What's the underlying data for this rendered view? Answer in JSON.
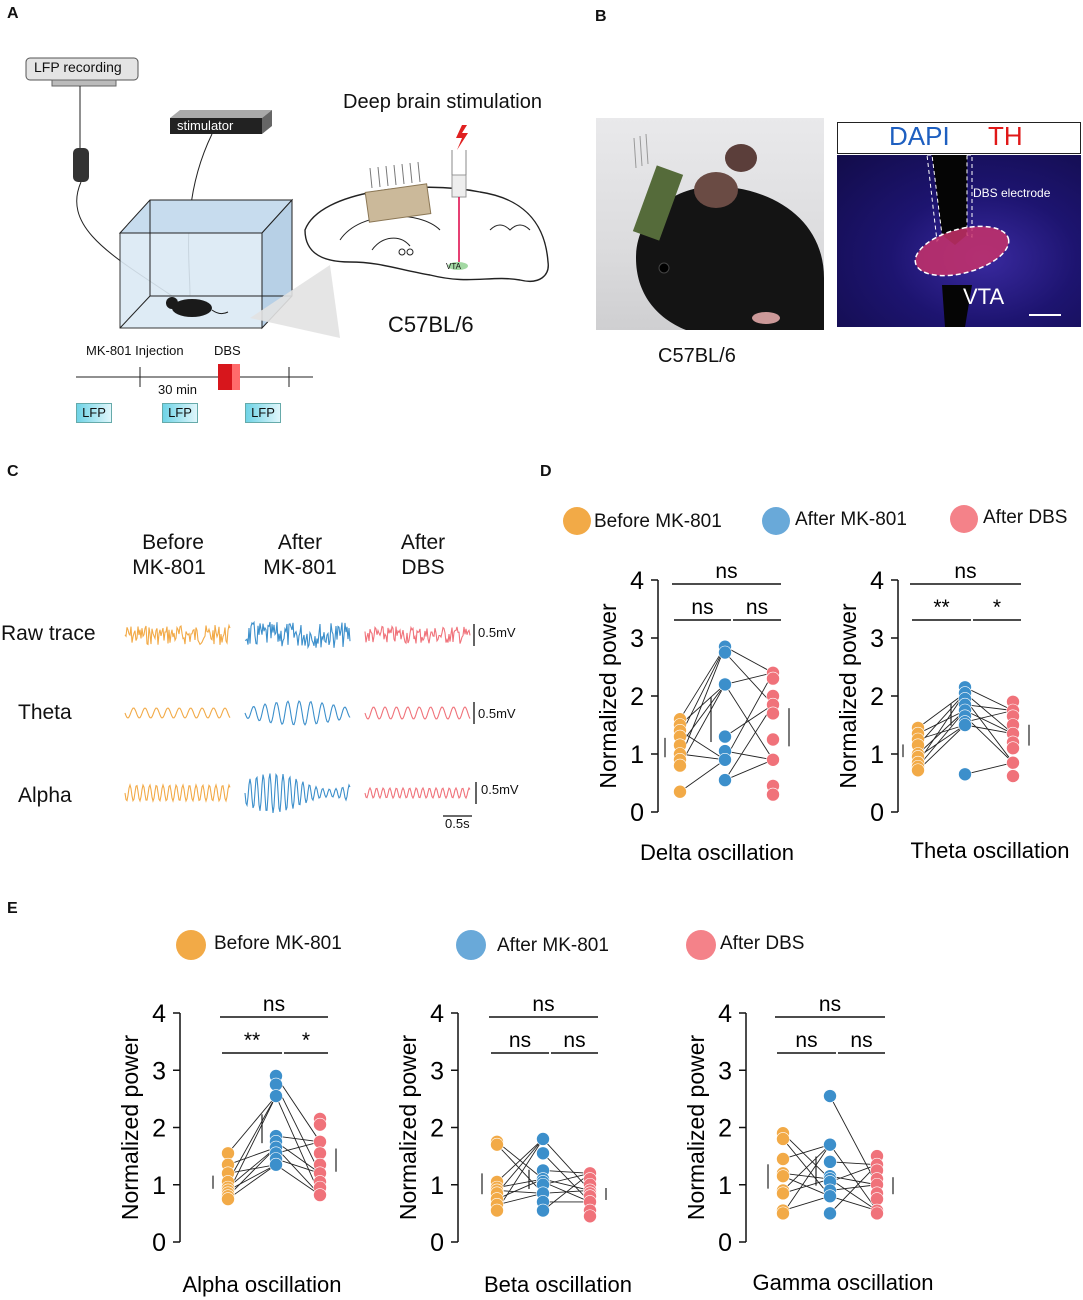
{
  "panels": {
    "A": "A",
    "B": "B",
    "C": "C",
    "D": "D",
    "E": "E"
  },
  "panelA": {
    "lfp_recording": "LFP recording",
    "stimulator": "stimulator",
    "dbs_title": "Deep brain stimulation",
    "strain": "C57BL/6",
    "vta_small": "VTA",
    "timeline_injection": "MK-801 Injection",
    "timeline_dbs": "DBS",
    "timeline_interval": "30 min",
    "lfp_boxes": [
      "LFP",
      "LFP",
      "LFP"
    ]
  },
  "panelB": {
    "strain": "C57BL/6",
    "dapi": "DAPI",
    "th": "TH",
    "dbs_electrode": "DBS electrode",
    "vta": "VTA"
  },
  "panelC": {
    "columns": [
      [
        "Before",
        "MK-801"
      ],
      [
        "After",
        "MK-801"
      ],
      [
        "After",
        "DBS"
      ]
    ],
    "rows": [
      "Raw trace",
      "Theta",
      "Alpha"
    ],
    "scale_mv": "0.5mV",
    "scale_time": "0.5s"
  },
  "legend": {
    "before": "Before MK-801",
    "after_mk": "After MK-801",
    "after_dbs": "After DBS"
  },
  "colors": {
    "before": "#f2aa47",
    "after_mk": "#3c8fcb",
    "after_dbs": "#f0727a"
  },
  "chart_data": [
    {
      "type": "scatter",
      "title": "Delta oscillation",
      "ylabel": "Normalized power",
      "ylim": [
        0,
        4
      ],
      "yticks": [
        0,
        1,
        2,
        3,
        4
      ],
      "groups": [
        "Before MK-801",
        "After MK-801",
        "After DBS"
      ],
      "values": [
        [
          1.6,
          1.5,
          1.4,
          1.3,
          1.15,
          1.0,
          0.9,
          0.8,
          0.35
        ],
        [
          2.85,
          2.75,
          2.2,
          2.2,
          1.3,
          1.05,
          0.9,
          0.55,
          0.55
        ],
        [
          2.4,
          2.3,
          2.0,
          1.85,
          1.7,
          1.25,
          0.9,
          0.45,
          0.3
        ]
      ],
      "significance": [
        {
          "pair": "1-3",
          "label": "ns"
        },
        {
          "pair": "1-2",
          "label": "ns"
        },
        {
          "pair": "2-3",
          "label": "ns"
        }
      ]
    },
    {
      "type": "scatter",
      "title": "Theta oscillation",
      "ylabel": "Normalized power",
      "ylim": [
        0,
        4
      ],
      "yticks": [
        0,
        1,
        2,
        3,
        4
      ],
      "groups": [
        "Before MK-801",
        "After MK-801",
        "After DBS"
      ],
      "values": [
        [
          1.45,
          1.35,
          1.25,
          1.15,
          1.0,
          0.95,
          0.85,
          0.78,
          0.72
        ],
        [
          2.15,
          2.05,
          1.95,
          1.85,
          1.75,
          1.65,
          1.55,
          1.5,
          0.65
        ],
        [
          1.9,
          1.75,
          1.65,
          1.5,
          1.35,
          1.2,
          1.1,
          0.85,
          0.62
        ]
      ],
      "significance": [
        {
          "pair": "1-3",
          "label": "ns"
        },
        {
          "pair": "1-2",
          "label": "**"
        },
        {
          "pair": "2-3",
          "label": "*"
        }
      ]
    },
    {
      "type": "scatter",
      "title": "Alpha oscillation",
      "ylabel": "Normalized power",
      "ylim": [
        0,
        4
      ],
      "yticks": [
        0,
        1,
        2,
        3,
        4
      ],
      "groups": [
        "Before MK-801",
        "After MK-801",
        "After DBS"
      ],
      "values": [
        [
          1.55,
          1.35,
          1.2,
          1.05,
          0.95,
          0.9,
          0.85,
          0.8,
          0.75
        ],
        [
          2.9,
          2.75,
          2.55,
          1.85,
          1.75,
          1.65,
          1.55,
          1.45,
          1.35
        ],
        [
          2.15,
          2.05,
          1.75,
          1.55,
          1.35,
          1.2,
          1.05,
          0.95,
          0.82
        ]
      ],
      "significance": [
        {
          "pair": "1-3",
          "label": "ns"
        },
        {
          "pair": "1-2",
          "label": "**"
        },
        {
          "pair": "2-3",
          "label": "*"
        }
      ]
    },
    {
      "type": "scatter",
      "title": "Beta oscillation",
      "ylabel": "Normalized power",
      "ylim": [
        0,
        4
      ],
      "yticks": [
        0,
        1,
        2,
        3,
        4
      ],
      "groups": [
        "Before MK-801",
        "After MK-801",
        "After DBS"
      ],
      "values": [
        [
          1.75,
          1.7,
          1.05,
          0.95,
          0.9,
          0.85,
          0.75,
          0.65,
          0.55
        ],
        [
          1.8,
          1.55,
          1.25,
          1.1,
          1.05,
          1.0,
          0.85,
          0.7,
          0.55
        ],
        [
          1.2,
          1.1,
          1.0,
          0.9,
          0.85,
          0.8,
          0.7,
          0.55,
          0.45
        ]
      ],
      "significance": [
        {
          "pair": "1-3",
          "label": "ns"
        },
        {
          "pair": "1-2",
          "label": "ns"
        },
        {
          "pair": "2-3",
          "label": "ns"
        }
      ]
    },
    {
      "type": "scatter",
      "title": "Gamma oscillation",
      "ylabel": "Normalized power",
      "ylim": [
        0,
        4
      ],
      "yticks": [
        0,
        1,
        2,
        3,
        4
      ],
      "groups": [
        "Before MK-801",
        "After MK-801",
        "After DBS"
      ],
      "values": [
        [
          1.9,
          1.8,
          1.45,
          1.2,
          1.15,
          0.9,
          0.85,
          0.55,
          0.5
        ],
        [
          2.55,
          1.7,
          1.4,
          1.15,
          1.1,
          1.05,
          0.9,
          0.8,
          0.5
        ],
        [
          1.5,
          1.35,
          1.25,
          1.1,
          1.0,
          0.85,
          0.75,
          0.55,
          0.5
        ]
      ],
      "significance": [
        {
          "pair": "1-3",
          "label": "ns"
        },
        {
          "pair": "1-2",
          "label": "ns"
        },
        {
          "pair": "2-3",
          "label": "ns"
        }
      ]
    }
  ]
}
